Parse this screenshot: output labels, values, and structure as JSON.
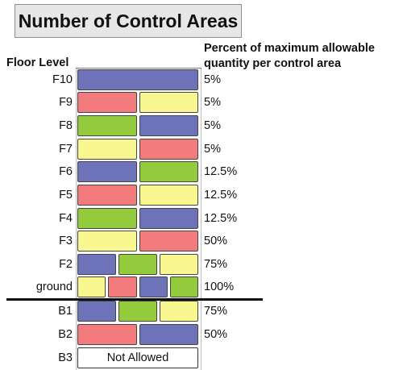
{
  "title": "Number of Control Areas",
  "headers": {
    "floor_level": "Floor Level",
    "percent_line1": "Percent of maximum allowable",
    "percent_line2": "quantity per control area"
  },
  "colors": {
    "blue": "#6d72b9",
    "red": "#f37b7d",
    "yellow": "#f9f790",
    "green": "#94cb3c"
  },
  "floors": [
    {
      "level": "F10",
      "percent": "5%",
      "control_areas": [
        "blue"
      ]
    },
    {
      "level": "F9",
      "percent": "5%",
      "control_areas": [
        "red",
        "yellow"
      ]
    },
    {
      "level": "F8",
      "percent": "5%",
      "control_areas": [
        "green",
        "blue"
      ]
    },
    {
      "level": "F7",
      "percent": "5%",
      "control_areas": [
        "yellow",
        "red"
      ]
    },
    {
      "level": "F6",
      "percent": "12.5%",
      "control_areas": [
        "blue",
        "green"
      ]
    },
    {
      "level": "F5",
      "percent": "12.5%",
      "control_areas": [
        "red",
        "yellow"
      ]
    },
    {
      "level": "F4",
      "percent": "12.5%",
      "control_areas": [
        "green",
        "blue"
      ]
    },
    {
      "level": "F3",
      "percent": "50%",
      "control_areas": [
        "yellow",
        "red"
      ]
    },
    {
      "level": "F2",
      "percent": "75%",
      "control_areas": [
        "blue",
        "green",
        "yellow"
      ]
    },
    {
      "level": "ground",
      "percent": "100%",
      "control_areas": [
        "yellow",
        "red",
        "blue",
        "green"
      ]
    },
    {
      "level": "B1",
      "percent": "75%",
      "control_areas": [
        "blue",
        "green",
        "yellow"
      ]
    },
    {
      "level": "B2",
      "percent": "50%",
      "control_areas": [
        "red",
        "blue"
      ]
    },
    {
      "level": "B3",
      "percent": "",
      "note": "Not Allowed",
      "control_areas": []
    }
  ]
}
